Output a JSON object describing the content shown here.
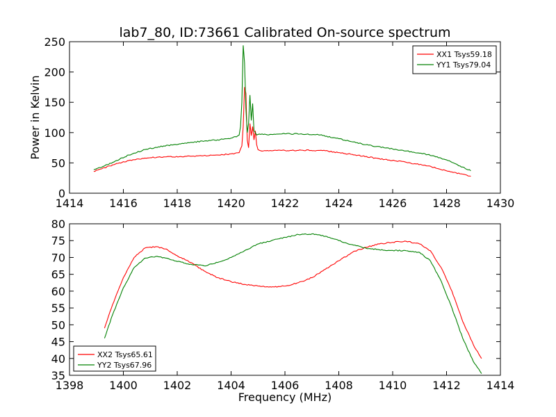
{
  "figure": {
    "title": "lab7_80, ID:73661 Calibrated On-source spectrum",
    "xlabel": "Frequency (MHz)"
  },
  "chart_data": [
    {
      "type": "line",
      "title": "lab7_80, ID:73661 Calibrated On-source spectrum",
      "xlabel": "",
      "ylabel": "Power in Kelvin",
      "xlim": [
        1414,
        1430
      ],
      "ylim": [
        0,
        250
      ],
      "xticks": [
        1414,
        1416,
        1418,
        1420,
        1422,
        1424,
        1426,
        1428,
        1430
      ],
      "yticks": [
        0,
        50,
        100,
        150,
        200,
        250
      ],
      "grid": false,
      "legend_position": "top-right",
      "series": [
        {
          "name": "XX1 Tsys59.18",
          "color": "#ff0000",
          "x": [
            1414.9,
            1415.3,
            1415.7,
            1416.2,
            1416.8,
            1417.5,
            1418.5,
            1419.5,
            1420.0,
            1420.3,
            1420.4,
            1420.45,
            1420.5,
            1420.55,
            1420.6,
            1420.65,
            1420.7,
            1420.75,
            1420.8,
            1420.85,
            1420.9,
            1420.95,
            1421.0,
            1421.1,
            1421.5,
            1422.0,
            1422.6,
            1423.5,
            1424.5,
            1425.5,
            1426.5,
            1427.3,
            1428.0,
            1428.5,
            1428.9
          ],
          "y": [
            36,
            42,
            48,
            54,
            58,
            60,
            61,
            63,
            65,
            67,
            78,
            110,
            175,
            165,
            88,
            75,
            115,
            95,
            110,
            88,
            103,
            80,
            72,
            70,
            70,
            70.5,
            71,
            70,
            64,
            57,
            51,
            45,
            37,
            32,
            28
          ]
        },
        {
          "name": "YY1 Tsys79.04",
          "color": "#008000",
          "x": [
            1414.9,
            1415.3,
            1415.7,
            1416.2,
            1416.8,
            1417.5,
            1418.5,
            1419.5,
            1420.0,
            1420.2,
            1420.3,
            1420.35,
            1420.4,
            1420.45,
            1420.5,
            1420.55,
            1420.6,
            1420.65,
            1420.7,
            1420.75,
            1420.8,
            1420.85,
            1420.9,
            1420.95,
            1421.0,
            1421.1,
            1421.5,
            1422.0,
            1422.6,
            1423.3,
            1424.0,
            1425.0,
            1426.0,
            1427.0,
            1427.5,
            1428.0,
            1428.5,
            1428.9
          ],
          "y": [
            39,
            45,
            53,
            63,
            72,
            78,
            84,
            88,
            91,
            93,
            96,
            110,
            150,
            244,
            215,
            140,
            100,
            115,
            162,
            120,
            148,
            103,
            100,
            96,
            97,
            97,
            97,
            98,
            98,
            96,
            90,
            80,
            73,
            66,
            62,
            55,
            45,
            37
          ]
        }
      ]
    },
    {
      "type": "line",
      "title": "",
      "xlabel": "Frequency (MHz)",
      "ylabel": "",
      "xlim": [
        1398,
        1414
      ],
      "ylim": [
        35,
        80
      ],
      "xticks": [
        1398,
        1400,
        1402,
        1404,
        1406,
        1408,
        1410,
        1412,
        1414
      ],
      "yticks": [
        35,
        40,
        45,
        50,
        55,
        60,
        65,
        70,
        75,
        80
      ],
      "grid": false,
      "legend_position": "bottom-left",
      "series": [
        {
          "name": "XX2 Tsys65.61",
          "color": "#ff0000",
          "x": [
            1399.3,
            1399.6,
            1400.0,
            1400.4,
            1400.8,
            1401.2,
            1401.6,
            1402.0,
            1402.5,
            1403.0,
            1403.5,
            1404.0,
            1404.5,
            1405.0,
            1405.5,
            1406.0,
            1406.5,
            1407.0,
            1407.5,
            1408.0,
            1408.5,
            1409.0,
            1409.5,
            1410.0,
            1410.5,
            1411.0,
            1411.4,
            1411.8,
            1412.2,
            1412.6,
            1413.0,
            1413.3
          ],
          "y": [
            49,
            56,
            64,
            70,
            72.8,
            73.2,
            72.5,
            70.5,
            68.5,
            66,
            64,
            62.8,
            62,
            61.5,
            61.2,
            61.5,
            62.5,
            64,
            66.5,
            69,
            71.5,
            73,
            74,
            74.5,
            74.8,
            74,
            72,
            67,
            60,
            51,
            44,
            40
          ]
        },
        {
          "name": "YY2 Tsys67.96",
          "color": "#008000",
          "x": [
            1399.3,
            1399.6,
            1400.0,
            1400.4,
            1400.8,
            1401.2,
            1401.6,
            1402.0,
            1402.5,
            1403.0,
            1403.5,
            1404.0,
            1404.5,
            1405.0,
            1405.5,
            1406.0,
            1406.5,
            1407.0,
            1407.5,
            1408.0,
            1408.5,
            1409.0,
            1409.5,
            1410.0,
            1410.5,
            1411.0,
            1411.4,
            1411.8,
            1412.2,
            1412.6,
            1413.0,
            1413.3
          ],
          "y": [
            46,
            53,
            61,
            67,
            69.8,
            70.3,
            69.8,
            68.8,
            68,
            67.5,
            68.5,
            70,
            72,
            74,
            75,
            76,
            76.8,
            77,
            76.3,
            75,
            73.8,
            72.8,
            72.3,
            72.1,
            72,
            71.5,
            69,
            63,
            55,
            46,
            39,
            35.5
          ]
        }
      ]
    }
  ]
}
